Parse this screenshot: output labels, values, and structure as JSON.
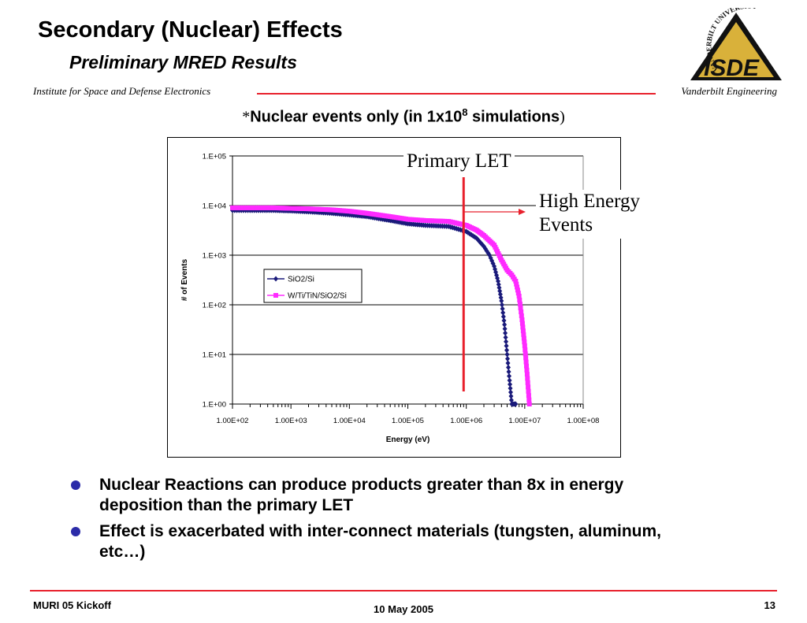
{
  "slide": {
    "title": "Secondary (Nuclear) Effects",
    "subtitle": "Preliminary MRED Results",
    "institute": "Institute for Space and Defense Electronics",
    "school": "Vanderbilt Engineering",
    "logo": {
      "arc_text": "VANDERBILT UNIVERSITY",
      "mark_text": "ISDE"
    },
    "heading": {
      "star": "*",
      "text": "Nuclear events only (in 1x10",
      "sup": "8",
      "text_after": " simulations",
      "close": ")"
    },
    "callouts": {
      "primary_let": "Primary LET",
      "high_energy_line1": "High Energy",
      "high_energy_line2": "Events"
    },
    "bullets": [
      "Nuclear Reactions can produce products greater than 8x in energy deposition than the primary LET",
      "Effect is exacerbated with inter-connect materials (tungsten, aluminum, etc…)"
    ],
    "footer": {
      "left": "MURI 05 Kickoff",
      "center": "10 May 2005",
      "right": "13"
    },
    "colors": {
      "accent_red": "#e8202c",
      "bullet": "#2b2ba8",
      "series1": "#1a1a7a",
      "series2": "#ff2bff",
      "marker_line": "#e8202c"
    }
  },
  "chart_data": {
    "type": "scatter",
    "xlabel": "Energy (eV)",
    "ylabel": "# of Events",
    "x_scale": "log",
    "y_scale": "log",
    "xlim": [
      100,
      100000000
    ],
    "ylim": [
      1,
      100000
    ],
    "x_ticks": [
      "1.00E+02",
      "1.00E+03",
      "1.00E+04",
      "1.00E+05",
      "1.00E+06",
      "1.00E+07",
      "1.00E+08"
    ],
    "y_ticks": [
      "1.E+00",
      "1.E+01",
      "1.E+02",
      "1.E+03",
      "1.E+04",
      "1.E+05"
    ],
    "grid": "horizontal",
    "legend": "center",
    "primary_let_energy": 900000,
    "series": [
      {
        "name": "SiO2/Si",
        "marker": "diamond",
        "x": [
          100,
          200,
          500,
          1000,
          2000,
          5000,
          10000,
          20000,
          50000,
          100000,
          200000,
          500000,
          1000000,
          1500000,
          2000000,
          2500000,
          3000000,
          3500000,
          4000000,
          4500000,
          5000000,
          5500000,
          6000000,
          6500000,
          7000000
        ],
        "y": [
          8000,
          8000,
          8000,
          7800,
          7500,
          7000,
          6500,
          6000,
          5000,
          4300,
          4000,
          3800,
          3000,
          2200,
          1500,
          1000,
          600,
          300,
          120,
          40,
          10,
          3,
          1,
          1,
          1
        ]
      },
      {
        "name": "W/Ti/TiN/SiO2/Si",
        "marker": "square",
        "x": [
          100,
          200,
          500,
          1000,
          2000,
          5000,
          10000,
          20000,
          50000,
          100000,
          200000,
          500000,
          1000000,
          1500000,
          2000000,
          3000000,
          4000000,
          5000000,
          6000000,
          7000000,
          8000000,
          9000000,
          10000000,
          11000000,
          12000000
        ],
        "y": [
          9000,
          9000,
          9000,
          8800,
          8600,
          8200,
          7700,
          7000,
          6000,
          5300,
          5000,
          4800,
          4000,
          3200,
          2500,
          1600,
          800,
          500,
          400,
          300,
          150,
          50,
          15,
          4,
          1
        ]
      }
    ]
  }
}
